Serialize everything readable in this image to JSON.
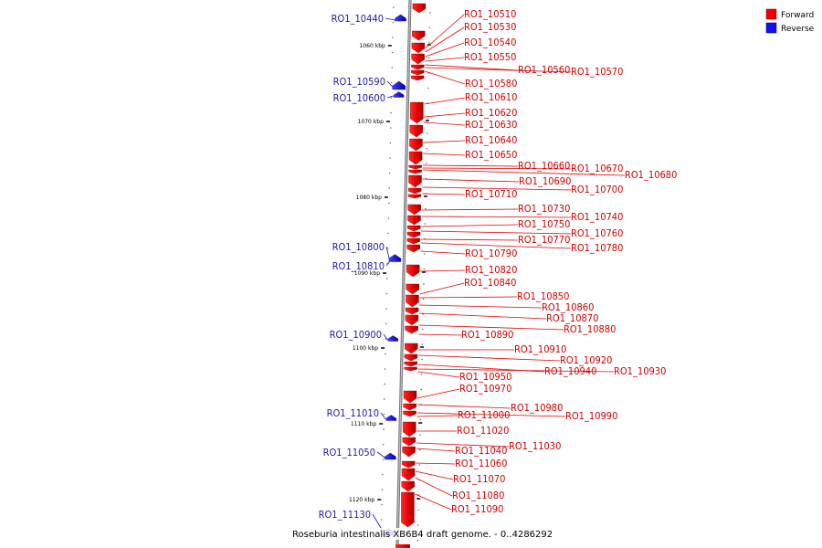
{
  "caption": "Roseburia intestinalis XB6B4 draft genome. - 0..4286292",
  "legend": {
    "forward": {
      "label": "Forward",
      "color": "#ee0000"
    },
    "reverse": {
      "label": "Reverse",
      "color": "#1010ee"
    }
  },
  "axis": {
    "unit": "kbp",
    "ticks": [
      {
        "label": "1060 kbp",
        "kbp": 1060
      },
      {
        "label": "1070 kbp",
        "kbp": 1070
      },
      {
        "label": "1080 kbp",
        "kbp": 1080
      },
      {
        "label": "1090 kbp",
        "kbp": 1090
      },
      {
        "label": "1100 kbp",
        "kbp": 1100
      },
      {
        "label": "1110 kbp",
        "kbp": 1110
      },
      {
        "label": "1120 kbp",
        "kbp": 1120
      }
    ]
  },
  "genes": {
    "forward": [
      {
        "id": "RO1_10510"
      },
      {
        "id": "RO1_10530"
      },
      {
        "id": "RO1_10540"
      },
      {
        "id": "RO1_10550"
      },
      {
        "id": "RO1_10560"
      },
      {
        "id": "RO1_10570"
      },
      {
        "id": "RO1_10580"
      },
      {
        "id": "RO1_10610"
      },
      {
        "id": "RO1_10620"
      },
      {
        "id": "RO1_10630"
      },
      {
        "id": "RO1_10640"
      },
      {
        "id": "RO1_10650"
      },
      {
        "id": "RO1_10660"
      },
      {
        "id": "RO1_10670"
      },
      {
        "id": "RO1_10680"
      },
      {
        "id": "RO1_10690"
      },
      {
        "id": "RO1_10700"
      },
      {
        "id": "RO1_10710"
      },
      {
        "id": "RO1_10730"
      },
      {
        "id": "RO1_10740"
      },
      {
        "id": "RO1_10750"
      },
      {
        "id": "RO1_10760"
      },
      {
        "id": "RO1_10770"
      },
      {
        "id": "RO1_10780"
      },
      {
        "id": "RO1_10790"
      },
      {
        "id": "RO1_10820"
      },
      {
        "id": "RO1_10840"
      },
      {
        "id": "RO1_10850"
      },
      {
        "id": "RO1_10860"
      },
      {
        "id": "RO1_10870"
      },
      {
        "id": "RO1_10880"
      },
      {
        "id": "RO1_10890"
      },
      {
        "id": "RO1_10910"
      },
      {
        "id": "RO1_10920"
      },
      {
        "id": "RO1_10940"
      },
      {
        "id": "RO1_10930"
      },
      {
        "id": "RO1_10950"
      },
      {
        "id": "RO1_10970"
      },
      {
        "id": "RO1_10980"
      },
      {
        "id": "RO1_10990"
      },
      {
        "id": "RO1_11000"
      },
      {
        "id": "RO1_11020"
      },
      {
        "id": "RO1_11030"
      },
      {
        "id": "RO1_11040"
      },
      {
        "id": "RO1_11060"
      },
      {
        "id": "RO1_11070"
      },
      {
        "id": "RO1_11080"
      },
      {
        "id": "RO1_11090"
      }
    ],
    "reverse": [
      {
        "id": "RO1_10440"
      },
      {
        "id": "RO1_10590"
      },
      {
        "id": "RO1_10600"
      },
      {
        "id": "RO1_10800"
      },
      {
        "id": "RO1_10810"
      },
      {
        "id": "RO1_10900"
      },
      {
        "id": "RO1_11010"
      },
      {
        "id": "RO1_11050"
      },
      {
        "id": "RO1_11130"
      }
    ]
  }
}
